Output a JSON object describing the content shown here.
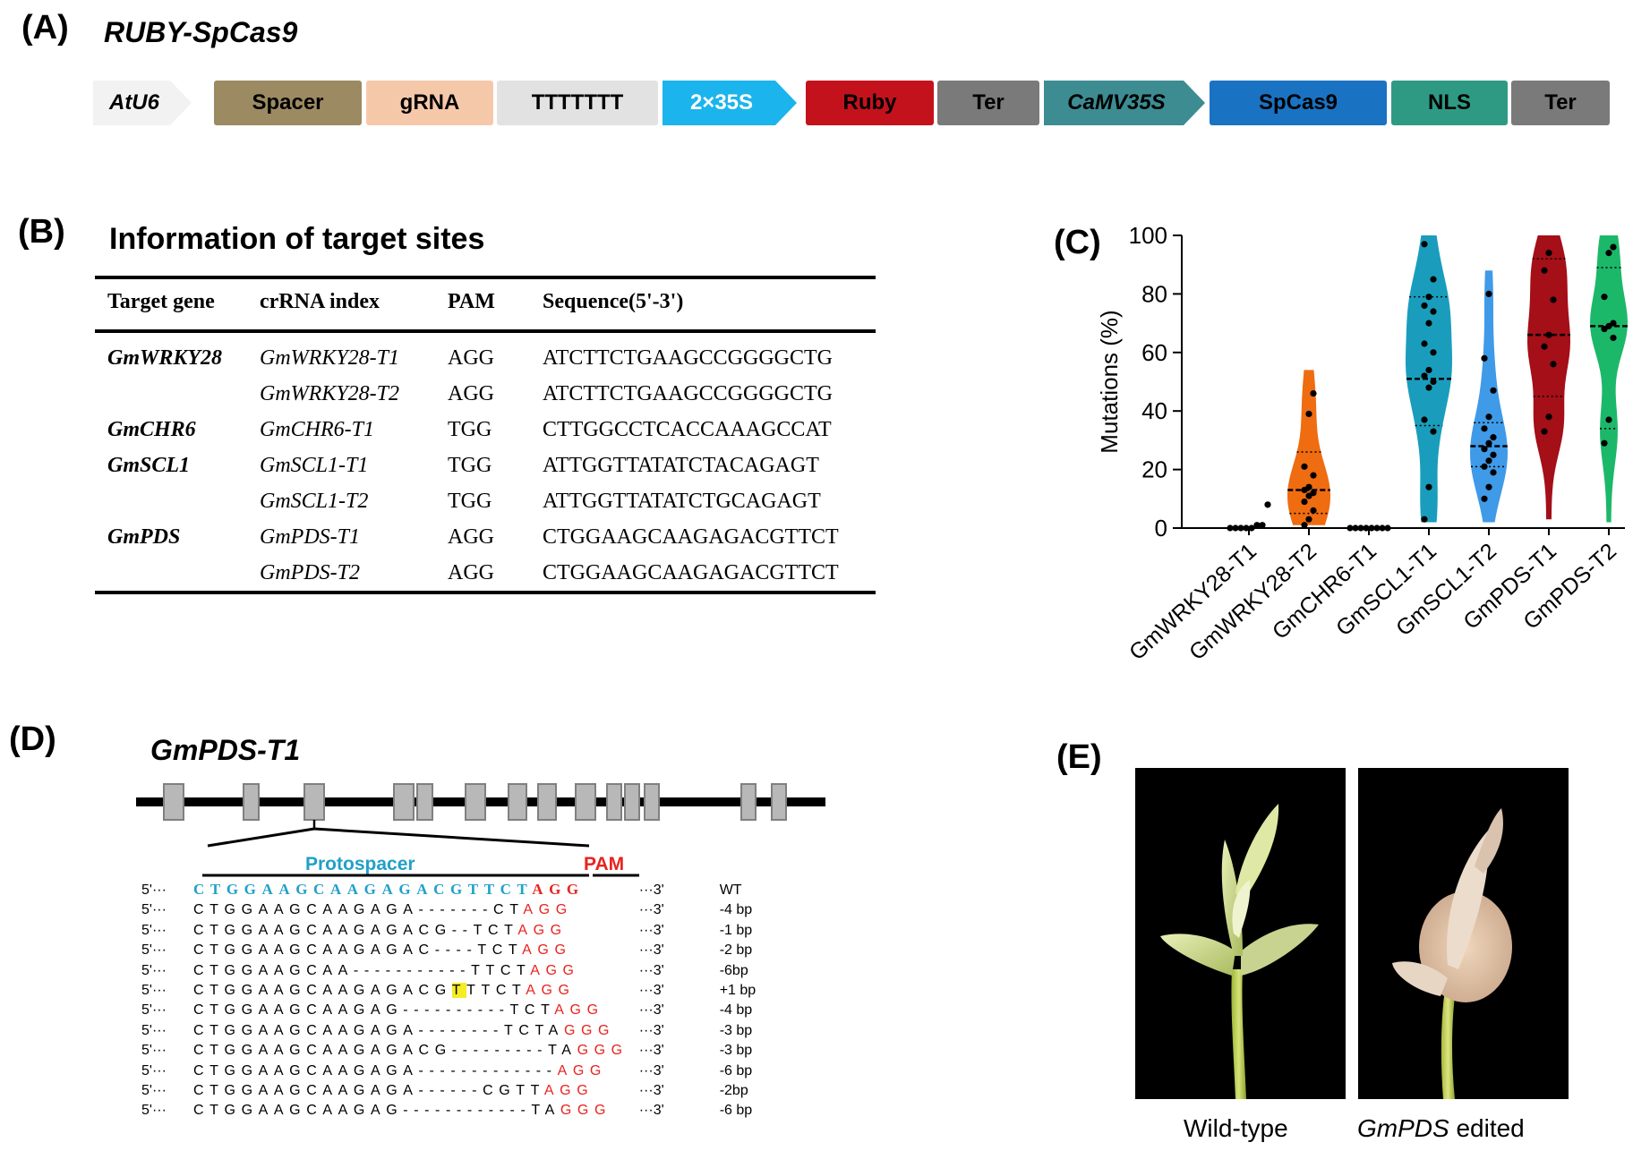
{
  "panels": {
    "a": "(A)",
    "b": "(B)",
    "c": "(C)",
    "d": "(D)",
    "e": "(E)"
  },
  "construct": {
    "title": "RUBY-SpCas9",
    "segments": [
      {
        "label": "AtU6",
        "color": "#f2f2f2",
        "text_color": "#000000",
        "italic": true,
        "arrow": true
      },
      {
        "label": "Spacer",
        "color": "#9c8a62",
        "text_color": "#000000",
        "italic": false,
        "arrow": false
      },
      {
        "label": "gRNA",
        "color": "#f6c8aa",
        "text_color": "#000000",
        "italic": false,
        "arrow": false
      },
      {
        "label": "TTTTTTT",
        "color": "#e2e2e2",
        "text_color": "#000000",
        "italic": false,
        "arrow": false
      },
      {
        "label": "2×35S",
        "color": "#1cb4ec",
        "text_color": "#ffffff",
        "italic": false,
        "arrow": true
      },
      {
        "label": "Ruby",
        "color": "#c4121d",
        "text_color": "#000000",
        "italic": false,
        "arrow": false
      },
      {
        "label": "Ter",
        "color": "#7a7a7a",
        "text_color": "#000000",
        "italic": false,
        "arrow": false
      },
      {
        "label": "CaMV35S",
        "color": "#3c8c92",
        "text_color": "#000000",
        "italic": true,
        "arrow": true
      },
      {
        "label": "SpCas9",
        "color": "#1a72c2",
        "text_color": "#000000",
        "italic": false,
        "arrow": false
      },
      {
        "label": "NLS",
        "color": "#2e9a84",
        "text_color": "#000000",
        "italic": false,
        "arrow": false
      },
      {
        "label": "Ter",
        "color": "#7a7a7a",
        "text_color": "#000000",
        "italic": false,
        "arrow": false
      }
    ]
  },
  "target_table": {
    "title": "Information of target sites",
    "headers": [
      "Target gene",
      "crRNA index",
      "PAM",
      "Sequence(5'-3')"
    ],
    "rows": [
      {
        "gene": "GmWRKY28",
        "crrna": "GmWRKY28-T1",
        "pam": "AGG",
        "seq": "ATCTTCTGAAGCCGGGGCTG"
      },
      {
        "gene": "",
        "crrna": "GmWRKY28-T2",
        "pam": "AGG",
        "seq": "ATCTTCTGAAGCCGGGGCTG"
      },
      {
        "gene": "GmCHR6",
        "crrna": "GmCHR6-T1",
        "pam": "TGG",
        "seq": "CTTGGCCTCACCAAAGCCAT"
      },
      {
        "gene": "GmSCL1",
        "crrna": "GmSCL1-T1",
        "pam": "TGG",
        "seq": "ATTGGTTATATCTACAGAGT"
      },
      {
        "gene": "",
        "crrna": "GmSCL1-T2",
        "pam": "TGG",
        "seq": "ATTGGTTATATCTGCAGAGT"
      },
      {
        "gene": "GmPDS",
        "crrna": "GmPDS-T1",
        "pam": "AGG",
        "seq": "CTGGAAGCAAGAGACGTTCT"
      },
      {
        "gene": "",
        "crrna": "GmPDS-T2",
        "pam": "AGG",
        "seq": "CTGGAAGCAAGAGACGTTCT"
      }
    ]
  },
  "chart_data": {
    "type": "violin",
    "ylabel": "Mutations (%)",
    "ylim": [
      0,
      100
    ],
    "yticks": [
      0,
      20,
      40,
      60,
      80,
      100
    ],
    "categories": [
      "GmWRKY28-T1",
      "GmWRKY28-T2",
      "GmCHR6-T1",
      "GmSCL1-T1",
      "GmSCL1-T2",
      "GmPDS-T1",
      "GmPDS-T2"
    ],
    "series": [
      {
        "color": "#111111",
        "points": [
          0,
          0,
          0,
          0,
          0,
          1,
          1,
          8
        ],
        "median": 0,
        "q1": 0,
        "q3": 0,
        "max_width": 0,
        "range": [
          0,
          0
        ]
      },
      {
        "color": "#ef6c11",
        "points": [
          1,
          3,
          6,
          9,
          11,
          12,
          13,
          14,
          18,
          21,
          39,
          46
        ],
        "median": 13,
        "q1": 5,
        "q3": 26,
        "max_width": 24,
        "range": [
          1,
          54
        ]
      },
      {
        "color": "#111111",
        "points": [
          0,
          0,
          0,
          0,
          0,
          0,
          0,
          0
        ],
        "median": 0,
        "q1": 0,
        "q3": 0,
        "max_width": 0,
        "range": [
          0,
          0
        ]
      },
      {
        "color": "#1a9dbc",
        "points": [
          3,
          14,
          33,
          37,
          48,
          50,
          52,
          54,
          60,
          63,
          70,
          74,
          76,
          79,
          85,
          97
        ],
        "median": 51,
        "q1": 35,
        "q3": 79,
        "max_width": 26,
        "range": [
          2,
          100
        ]
      },
      {
        "color": "#3f9ae8",
        "points": [
          10,
          14,
          19,
          21,
          23,
          25,
          27,
          29,
          31,
          34,
          38,
          47,
          58,
          80
        ],
        "median": 28,
        "q1": 21,
        "q3": 36,
        "max_width": 21,
        "range": [
          2,
          88
        ]
      },
      {
        "color": "#a40f18",
        "points": [
          33,
          38,
          56,
          62,
          66,
          78,
          88,
          94
        ],
        "median": 66,
        "q1": 45,
        "q3": 92,
        "max_width": 24,
        "range": [
          3,
          100
        ]
      },
      {
        "color": "#1cb86a",
        "points": [
          29,
          37,
          65,
          68,
          69,
          70,
          79,
          94,
          96
        ],
        "median": 69,
        "q1": 34,
        "q3": 89,
        "max_width": 21,
        "range": [
          2,
          100
        ]
      }
    ]
  },
  "gene_diagram": {
    "title": "GmPDS-T1",
    "protospacer_label": "Protospacer",
    "pam_label": "PAM",
    "protospacer_color": "#21a0c8",
    "pam_color": "#e8231f"
  },
  "alignment": {
    "rows": [
      {
        "p5": "5'···",
        "pre": "CTGGAAGCAAGAGACGTTCT",
        "pam": "AGG",
        "p3": "···3'",
        "label": "WT"
      },
      {
        "p5": "5'···",
        "pre": "CTGGAAGCAAGAGA-------CT",
        "pam": "AGG",
        "p3": "···3'",
        "label": "-4 bp"
      },
      {
        "p5": "5'···",
        "pre": "CTGGAAGCAAGAGACG--TCT",
        "pam": "AGG",
        "p3": "···3'",
        "label": "-1 bp"
      },
      {
        "p5": "5'···",
        "pre": "CTGGAAGCAAGAGAC----TCT",
        "pam": "AGG",
        "p3": "···3'",
        "label": "-2 bp"
      },
      {
        "p5": "5'···",
        "pre": "CTGGAAGCAA-----------TTCT",
        "pam": "AGG",
        "p3": "···3'",
        "label": "-6bp"
      },
      {
        "p5": "5'···",
        "pre_a": "CTGGAAGCAAGAGACG",
        "ins": "T",
        "pre_b": "TTCT",
        "pam": "AGG",
        "p3": "···3'",
        "label": "+1 bp"
      },
      {
        "p5": "5'···",
        "pre": "CTGGAAGCAAGAG----------TCT",
        "pam": "AGG",
        "p3": "···3'",
        "label": "-4 bp"
      },
      {
        "p5": "5'···",
        "pre": "CTGGAAGCAAGAGA--------TCTA",
        "pam": "GGG",
        "p3": "···3'",
        "label": "-3 bp"
      },
      {
        "p5": "5'···",
        "pre": "CTGGAAGCAAGAGACG---------TA",
        "pam": "GGG",
        "p3": "···3'",
        "label": "-3 bp"
      },
      {
        "p5": "5'···",
        "pre": "CTGGAAGCAAGAGA-------------",
        "pam": "AGG",
        "p3": "···3'",
        "label": "-6 bp"
      },
      {
        "p5": "5'···",
        "pre": "CTGGAAGCAAGAGA------CGTT",
        "pam": "AGG",
        "p3": "···3'",
        "label": "-2bp"
      },
      {
        "p5": "5'···",
        "pre": "CTGGAAGCAAGAG------------TA",
        "pam": "GGG",
        "p3": "···3'",
        "label": "-6 bp"
      }
    ]
  },
  "photos": {
    "wild_type": "Wild-type",
    "edited_gene": "GmPDS",
    "edited_suffix": " edited"
  }
}
